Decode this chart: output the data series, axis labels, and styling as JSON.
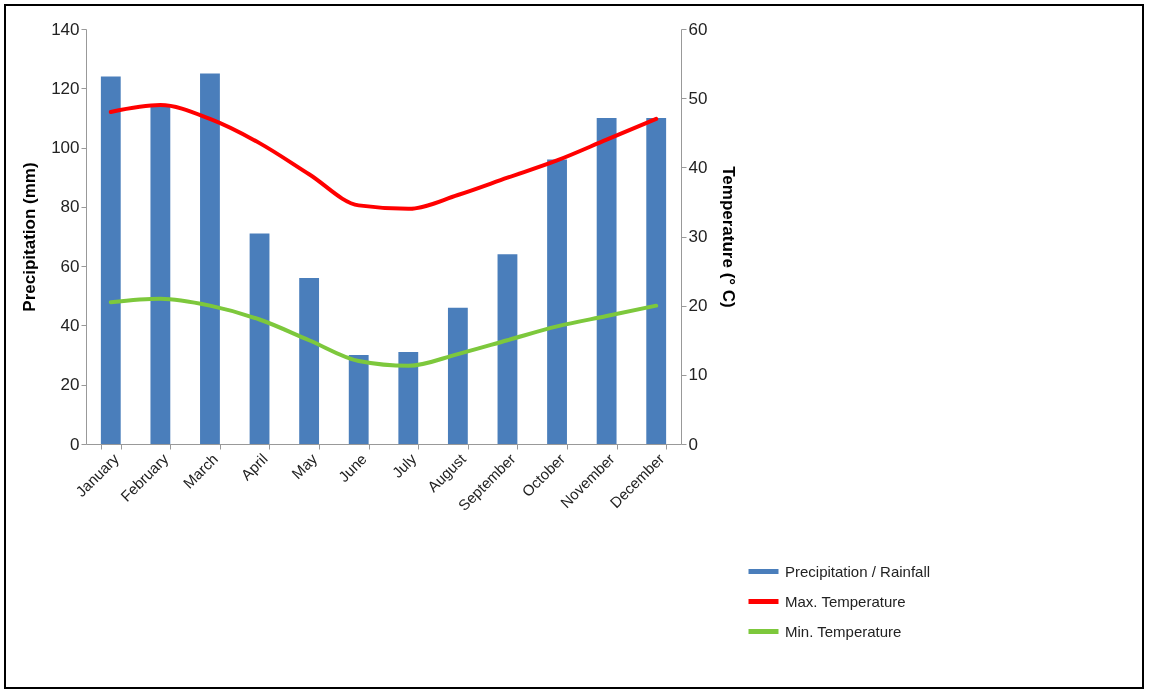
{
  "chart_data": {
    "type": "bar",
    "categories": [
      "January",
      "February",
      "March",
      "April",
      "May",
      "June",
      "July",
      "August",
      "September",
      "October",
      "November",
      "December"
    ],
    "ylabel": "Precipitation (mm)",
    "y2label": "Temperature (° C)",
    "ylim": [
      0,
      140
    ],
    "yticks": [
      0,
      20,
      40,
      60,
      80,
      100,
      120,
      140
    ],
    "y2lim": [
      0,
      60
    ],
    "y2ticks": [
      0,
      10,
      20,
      30,
      40,
      50,
      60
    ],
    "grid": false,
    "legend": "bottom right",
    "series": [
      {
        "name": "Precipitation / Rainfall",
        "color": "#4a7ebb",
        "values": [
          124,
          114,
          125,
          71,
          56,
          30,
          31,
          46,
          64,
          96,
          110,
          110
        ]
      },
      {
        "name": "Max. Temperature",
        "type": "line",
        "axis": "y2",
        "color": "#ff0000",
        "values": [
          48,
          49,
          47,
          43.5,
          39,
          34.5,
          34,
          36,
          38.5,
          41,
          44,
          47
        ]
      },
      {
        "name": "Min. Temperature",
        "type": "line",
        "axis": "y2",
        "color": "#7dc83c",
        "values": [
          20.5,
          21,
          20,
          18,
          15,
          12,
          11.3,
          13,
          15,
          17,
          18.5,
          20
        ]
      }
    ]
  }
}
